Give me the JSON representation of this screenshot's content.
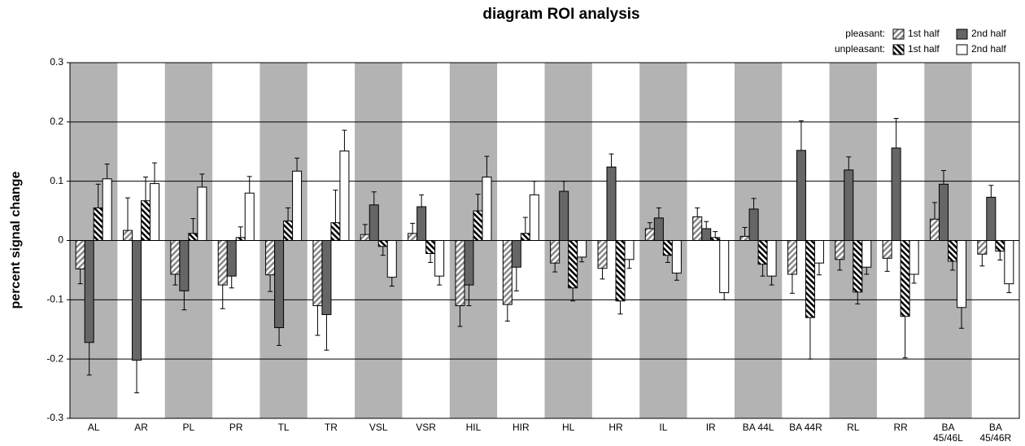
{
  "chart_data": {
    "type": "bar",
    "title": "diagram ROI analysis",
    "y_label": "percent signal change",
    "ylim": [
      -0.3,
      0.3
    ],
    "yticks": [
      0.3,
      0.2,
      0.1,
      0,
      -0.1,
      -0.2,
      -0.3
    ],
    "grid": true,
    "categories": [
      "AL",
      "AR",
      "PL",
      "PR",
      "TL",
      "TR",
      "VSL",
      "VSR",
      "HIL",
      "HIR",
      "HL",
      "HR",
      "IL",
      "IR",
      "BA 44L",
      "BA 44R",
      "RL",
      "RR",
      "BA\n45/46L",
      "BA\n45/46R"
    ],
    "groups": [
      {
        "name": "pleasant:",
        "series": [
          {
            "name": "1st half",
            "color": "#888888",
            "pattern": "hatch-forward",
            "values": [
              -0.048,
              0.017,
              -0.057,
              -0.075,
              -0.058,
              -0.11,
              0.01,
              0.012,
              -0.11,
              -0.108,
              -0.038,
              -0.047,
              0.02,
              0.04,
              0.007,
              -0.057,
              -0.032,
              -0.03,
              0.036,
              -0.023
            ],
            "errors": [
              0.025,
              0.055,
              0.018,
              0.04,
              0.028,
              0.05,
              0.017,
              0.017,
              0.035,
              0.028,
              0.015,
              0.018,
              0.01,
              0.015,
              0.015,
              0.032,
              0.018,
              0.022,
              0.028,
              0.02
            ]
          },
          {
            "name": "2nd half",
            "color": "#666666",
            "pattern": "solid",
            "values": [
              -0.172,
              -0.202,
              -0.085,
              -0.06,
              -0.147,
              -0.125,
              0.06,
              0.057,
              -0.075,
              -0.045,
              0.083,
              0.124,
              0.038,
              0.02,
              0.053,
              0.152,
              0.119,
              0.156,
              0.095,
              0.073
            ],
            "errors": [
              0.055,
              0.055,
              0.032,
              0.02,
              0.03,
              0.06,
              0.022,
              0.02,
              0.035,
              0.04,
              0.017,
              0.022,
              0.017,
              0.012,
              0.018,
              0.05,
              0.022,
              0.05,
              0.023,
              0.02
            ]
          }
        ]
      },
      {
        "name": "unpleasant:",
        "series": [
          {
            "name": "1st half",
            "color": "#000000",
            "pattern": "hatch-back",
            "values": [
              0.055,
              0.067,
              0.012,
              0.005,
              0.033,
              0.03,
              -0.01,
              -0.022,
              0.05,
              0.012,
              -0.08,
              -0.102,
              -0.025,
              0.005,
              -0.04,
              -0.13,
              -0.087,
              -0.128,
              -0.035,
              -0.018
            ],
            "errors": [
              0.04,
              0.04,
              0.025,
              0.018,
              0.022,
              0.055,
              0.015,
              0.015,
              0.028,
              0.027,
              0.022,
              0.022,
              0.012,
              0.01,
              0.02,
              0.07,
              0.02,
              0.07,
              0.015,
              0.015
            ]
          },
          {
            "name": "2nd half",
            "color": "#ffffff",
            "pattern": "solid",
            "values": [
              0.104,
              0.096,
              0.09,
              0.08,
              0.117,
              0.151,
              -0.062,
              -0.06,
              0.107,
              0.077,
              -0.028,
              -0.032,
              -0.055,
              -0.088,
              -0.06,
              -0.038,
              -0.045,
              -0.057,
              -0.113,
              -0.073
            ],
            "errors": [
              0.025,
              0.035,
              0.022,
              0.028,
              0.022,
              0.035,
              0.015,
              0.015,
              0.035,
              0.023,
              0.008,
              0.015,
              0.012,
              0.012,
              0.015,
              0.02,
              0.012,
              0.015,
              0.035,
              0.015
            ]
          }
        ]
      }
    ]
  }
}
